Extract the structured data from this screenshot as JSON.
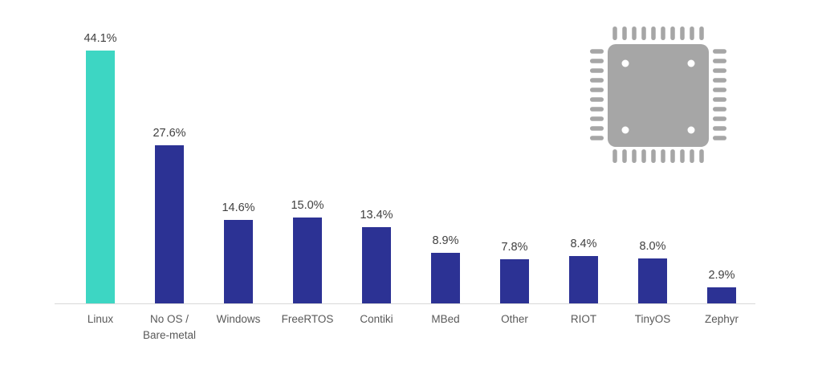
{
  "chart_data": {
    "type": "bar",
    "categories": [
      "Linux",
      "No OS /\nBare-metal",
      "Windows",
      "FreeRTOS",
      "Contiki",
      "MBed",
      "Other",
      "RIOT",
      "TinyOS",
      "Zephyr"
    ],
    "values": [
      44.1,
      27.6,
      14.6,
      15.0,
      13.4,
      8.9,
      7.8,
      8.4,
      8.0,
      2.9
    ],
    "data_labels": [
      "44.1%",
      "27.6%",
      "14.6%",
      "15.0%",
      "13.4%",
      "8.9%",
      "7.8%",
      "8.4%",
      "8.0%",
      "2.9%"
    ],
    "title": "",
    "xlabel": "",
    "ylabel": "",
    "ylim": [
      0,
      45
    ],
    "grid": false,
    "legend": "none",
    "value_axis_visible": false,
    "highlight_category": "Linux",
    "colors": {
      "highlight_bar": "#3dd6c3",
      "default_bar": "#2c3294",
      "axis_line": "#d9d9d9",
      "data_label_text": "#404040",
      "category_label_text": "#595959"
    }
  },
  "icons": {
    "microchip": {
      "name": "microchip-icon",
      "color": "#a6a6a6"
    }
  }
}
